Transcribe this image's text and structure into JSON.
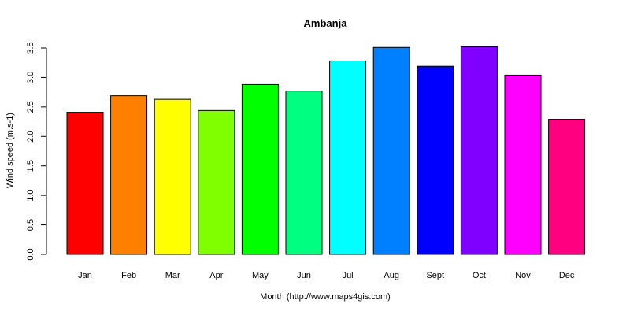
{
  "chart_data": {
    "type": "bar",
    "title": "Ambanja",
    "xlabel": "Month (http://www.maps4gis.com)",
    "ylabel": "Wind speed (m.s-1)",
    "categories": [
      "Jan",
      "Feb",
      "Mar",
      "Apr",
      "May",
      "Jun",
      "Jul",
      "Aug",
      "Sept",
      "Oct",
      "Nov",
      "Dec"
    ],
    "values": [
      2.41,
      2.69,
      2.63,
      2.44,
      2.88,
      2.77,
      3.28,
      3.51,
      3.19,
      3.52,
      3.04,
      2.29
    ],
    "colors": [
      "#FF0000",
      "#FF8000",
      "#FFFF00",
      "#80FF00",
      "#00FF00",
      "#00FF80",
      "#00FFFF",
      "#0080FF",
      "#0000FF",
      "#8000FF",
      "#FF00FF",
      "#FF0080"
    ],
    "yticks": [
      "0.0",
      "0.5",
      "1.0",
      "1.5",
      "2.0",
      "2.5",
      "3.0",
      "3.5"
    ],
    "ylim": [
      0,
      3.5
    ],
    "grid": false,
    "legend": null
  }
}
